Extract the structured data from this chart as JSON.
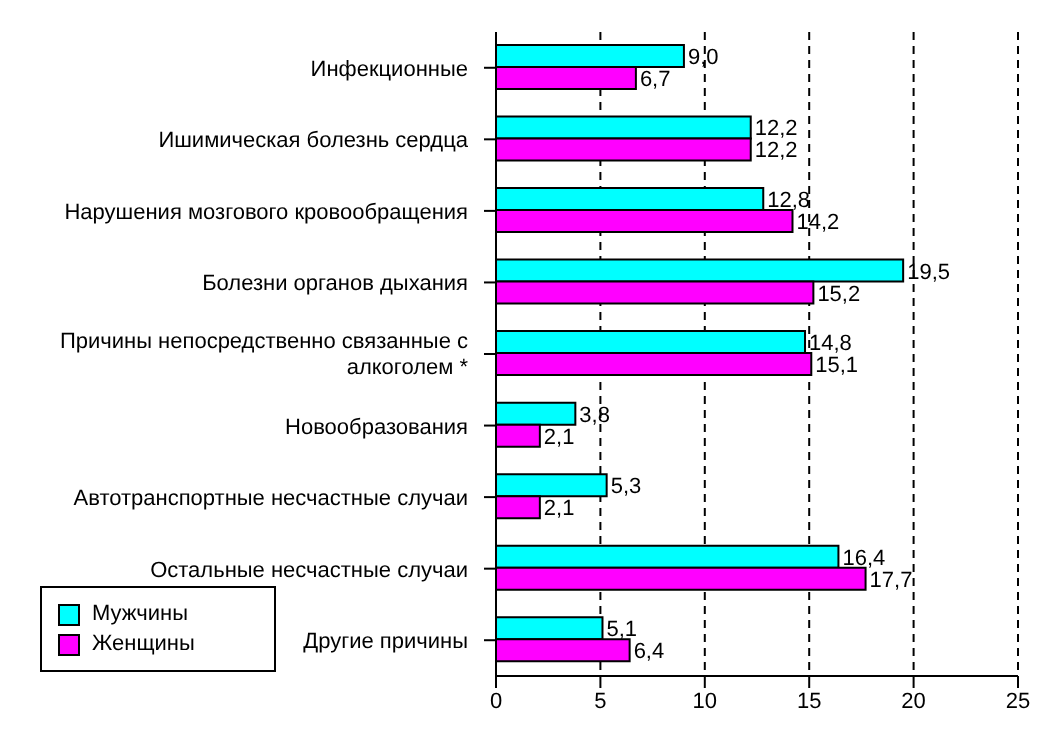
{
  "chart_data": {
    "type": "bar",
    "orientation": "horizontal",
    "categories": [
      "Инфекционные",
      "Ишимическая болезнь сердца",
      "Нарушения мозгового кровообращения",
      "Болезни органов дыхания",
      "Причины непосредственно связанные с алкоголем *",
      "Новообразования",
      "Автотранспортные несчастные случаи",
      "Остальные несчастные случаи",
      "Другие причины"
    ],
    "series": [
      {
        "name": "Мужчины",
        "color": "#00ffff",
        "values": [
          9.0,
          12.2,
          12.8,
          19.5,
          14.8,
          3.8,
          5.3,
          16.4,
          5.1
        ],
        "value_labels": [
          "9,0",
          "12,2",
          "12,8",
          "19,5",
          "14,8",
          "3,8",
          "5,3",
          "16,4",
          "5,1"
        ]
      },
      {
        "name": "Женщины",
        "color": "#ff00ff",
        "values": [
          6.7,
          12.2,
          14.2,
          15.2,
          15.1,
          2.1,
          2.1,
          17.7,
          6.4
        ],
        "value_labels": [
          "6,7",
          "12,2",
          "14,2",
          "15,2",
          "15,1",
          "2,1",
          "2,1",
          "17,7",
          "6,4"
        ]
      }
    ],
    "xlim": [
      0,
      25
    ],
    "xticks": [
      0,
      5,
      10,
      15,
      20,
      25
    ],
    "grid": "x",
    "legend": "bottom left"
  }
}
